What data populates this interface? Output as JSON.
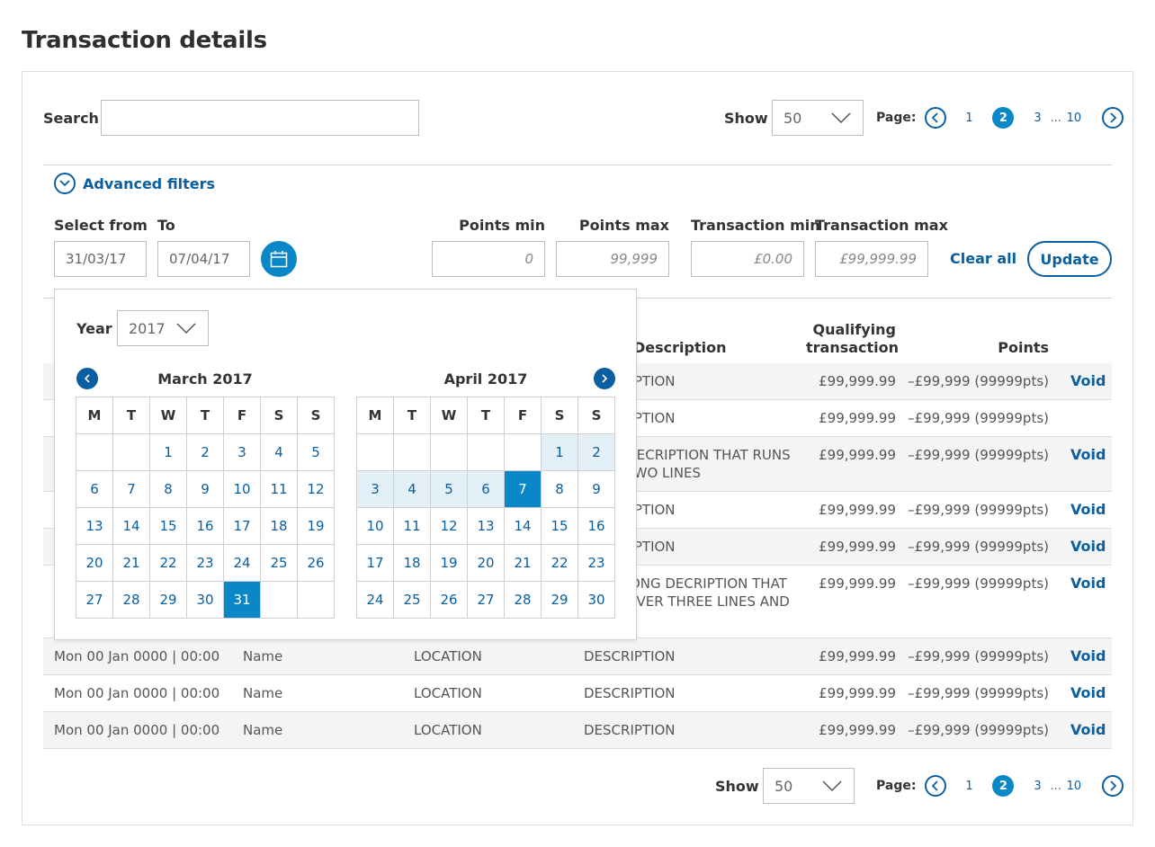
{
  "title": "Transaction details",
  "search": {
    "label": "Search",
    "value": ""
  },
  "show_label": "Show",
  "show_value": "50",
  "pagination": {
    "label": "Page:",
    "pages": [
      "1",
      "2",
      "3",
      "10"
    ],
    "current": "2",
    "ellipsis": "..."
  },
  "advanced_filters": "Advanced filters",
  "filters": {
    "select_from_label": "Select from",
    "select_from_value": "31/03/17",
    "to_label": "To",
    "to_value": "07/04/17",
    "points_min_label": "Points min",
    "points_min_placeholder": "0",
    "points_max_label": "Points max",
    "points_max_placeholder": "99,999",
    "transaction_min_label": "Transaction min",
    "transaction_min_placeholder": "£0.00",
    "transaction_max_label": "Transaction max",
    "transaction_max_placeholder": "£99,999.99",
    "clear_all": "Clear all",
    "update": "Update"
  },
  "datepicker": {
    "year_label": "Year",
    "year_value": "2017",
    "weekdays": [
      "M",
      "T",
      "W",
      "T",
      "F",
      "S",
      "S"
    ],
    "months": [
      {
        "title": "March 2017",
        "offset": 2,
        "days": 31,
        "range": [],
        "selected": [
          31
        ]
      },
      {
        "title": "April 2017",
        "offset": 5,
        "days": 30,
        "range": [
          1,
          2,
          3,
          4,
          5,
          6
        ],
        "selected": [
          7
        ]
      }
    ]
  },
  "table": {
    "headers": {
      "description": "Description",
      "qualifying_1": "Qualifying",
      "qualifying_2": "transaction",
      "points": "Points"
    },
    "rows": [
      {
        "description": "DESCRIPTION",
        "amount": "£99,999.99",
        "points": "–£99,999 (99999pts)",
        "void": "Void"
      },
      {
        "description": "DESCRIPTION",
        "amount": "£99,999.99",
        "points": "–£99,999 (99999pts)",
        "void": ""
      },
      {
        "description": "LONG DECRIPTION THAT RUNS",
        "description2": "OVER TWO LINES",
        "amount": "£99,999.99",
        "points": "–£99,999 (99999pts)",
        "void": "Void"
      },
      {
        "description": "DESCRIPTION",
        "amount": "£99,999.99",
        "points": "–£99,999 (99999pts)",
        "void": "Void"
      },
      {
        "description": "DESCRIPTION",
        "amount": "£99,999.99",
        "points": "–£99,999 (99999pts)",
        "void": "Void"
      },
      {
        "description": "VERY LONG DECRIPTION THAT",
        "description2": "RUNS OVER THREE LINES AND",
        "amount": "£99,999.99",
        "points": "–£99,999 (99999pts)",
        "void": "Void"
      },
      {
        "date": "Mon 00 Jan 0000 | 00:00",
        "name": "Name",
        "location": "LOCATION",
        "description": "DESCRIPTION",
        "amount": "£99,999.99",
        "points": "–£99,999 (99999pts)",
        "void": "Void"
      },
      {
        "date": "Mon 00 Jan 0000 | 00:00",
        "name": "Name",
        "location": "LOCATION",
        "description": "DESCRIPTION",
        "amount": "£99,999.99",
        "points": "–£99,999 (99999pts)",
        "void": "Void"
      },
      {
        "date": "Mon 00 Jan 0000 | 00:00",
        "name": "Name",
        "location": "LOCATION",
        "description": "DESCRIPTION",
        "amount": "£99,999.99",
        "points": "–£99,999 (99999pts)",
        "void": "Void"
      }
    ]
  },
  "colors": {
    "primary": "#0a5fa0",
    "accent": "#0a87c7",
    "range": "#e3f0f7",
    "row_shade": "#f4f4f4"
  }
}
